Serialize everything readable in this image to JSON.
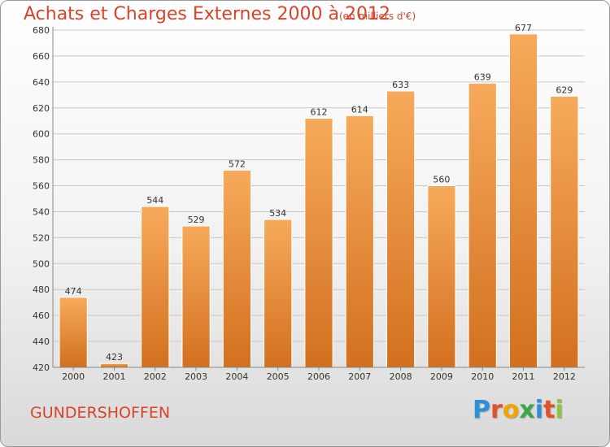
{
  "title": "Achats et Charges Externes 2000 à 2012",
  "subtitle": "(en milliers d'€)",
  "commune": "GUNDERSHOFFEN",
  "logo": {
    "text": "Proxiti",
    "letter_colors": [
      "#2e8fd8",
      "#e0522a",
      "#f2a400",
      "#3aa84a",
      "#2e8fd8",
      "#e0522a",
      "#8cc63e"
    ]
  },
  "colors": {
    "bar_top": "#f7aa5b",
    "bar_bottom": "#d2701f",
    "title": "#d8432a",
    "grid": "#c8c8c8",
    "text": "#333333"
  },
  "chart_data": {
    "type": "bar",
    "categories": [
      "2000",
      "2001",
      "2002",
      "2003",
      "2004",
      "2005",
      "2006",
      "2007",
      "2008",
      "2009",
      "2010",
      "2011",
      "2012"
    ],
    "values": [
      474,
      423,
      544,
      529,
      572,
      534,
      612,
      614,
      633,
      560,
      639,
      677,
      629
    ],
    "ylim": [
      420,
      680
    ],
    "yticks": [
      420,
      440,
      460,
      480,
      500,
      520,
      540,
      560,
      580,
      600,
      620,
      640,
      660,
      680
    ],
    "grid": true,
    "data_labels": true
  }
}
